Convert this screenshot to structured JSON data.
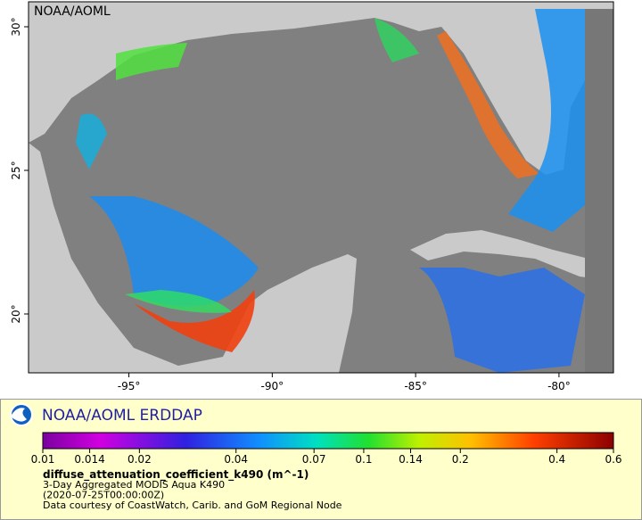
{
  "map": {
    "credit": "NOAA/AOML",
    "xlim": [
      -98.5,
      -78.1
    ],
    "ylim": [
      17.95,
      30.87
    ],
    "xticks": [
      {
        "value": -95,
        "label": "-95°"
      },
      {
        "value": -90,
        "label": "-90°"
      },
      {
        "value": -85,
        "label": "-85°"
      },
      {
        "value": -80,
        "label": "-80°"
      }
    ],
    "yticks": [
      {
        "value": 20,
        "label": "20°"
      },
      {
        "value": 25,
        "label": "25°"
      },
      {
        "value": 30,
        "label": "30°"
      }
    ]
  },
  "legend": {
    "title": "NOAA/AOML ERDDAP",
    "colorbar": {
      "log": true,
      "lim": [
        0.01,
        0.6
      ],
      "ticks": [
        0.01,
        0.014,
        0.02,
        0.04,
        0.07,
        0.1,
        0.14,
        0.2,
        0.4,
        0.6
      ]
    },
    "variable": "diffuse_attenuation_coefficient_k490 (m^-1)",
    "lines": [
      "3-Day Aggregated MODIS Aqua K490",
      "(2020-07-25T00:00:00Z)",
      "Data courtesy of CoastWatch, Carib. and GoM Regional Node"
    ]
  }
}
